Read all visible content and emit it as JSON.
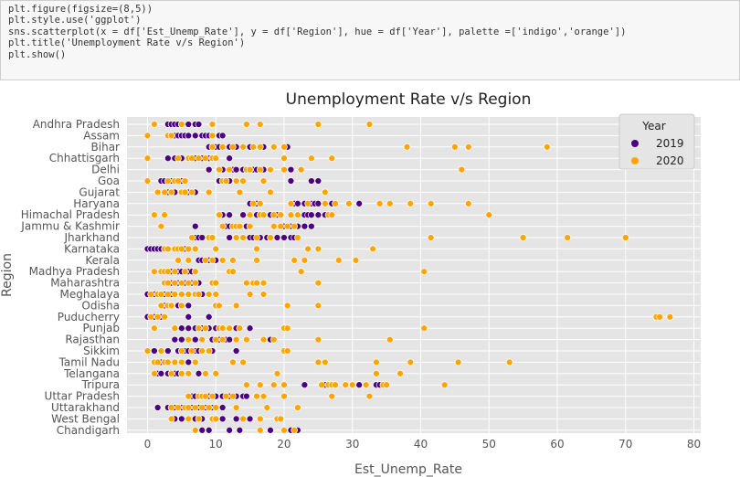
{
  "code": {
    "lines": [
      "plt.figure(figsize=(8,5))",
      "plt.style.use('ggplot')",
      "sns.scatterplot(x = df['Est_Unemp_Rate'], y = df['Region'], hue = df['Year'], palette =['indigo','orange'])",
      "plt.title('Unemployment Rate v/s Region')",
      "plt.show()"
    ]
  },
  "chart_data": {
    "type": "scatter",
    "title": "Unemployment Rate v/s Region",
    "xlabel": "Est_Unemp_Rate",
    "ylabel": "Region",
    "xlim": [
      -3,
      81
    ],
    "xticks": [
      0,
      10,
      20,
      30,
      40,
      50,
      60,
      70,
      80
    ],
    "grid": true,
    "legend": {
      "title": "Year",
      "placement": "top-right"
    },
    "categories": [
      "Andhra Pradesh",
      "Assam",
      "Bihar",
      "Chhattisgarh",
      "Delhi",
      "Goa",
      "Gujarat",
      "Haryana",
      "Himachal Pradesh",
      "Jammu & Kashmir",
      "Jharkhand",
      "Karnataka",
      "Kerala",
      "Madhya Pradesh",
      "Maharashtra",
      "Meghalaya",
      "Odisha",
      "Puducherry",
      "Punjab",
      "Rajasthan",
      "Sikkim",
      "Tamil Nadu",
      "Telangana",
      "Tripura",
      "Uttar Pradesh",
      "Uttarakhand",
      "West Bengal",
      "Chandigarh"
    ],
    "series": [
      {
        "name": "2019",
        "color": "#4b0082",
        "points": [
          [
            "Andhra Pradesh",
            [
              3,
              3.5,
              4,
              4.5,
              5,
              6,
              7,
              7.5
            ]
          ],
          [
            "Assam",
            [
              4,
              4.5,
              5,
              5.5,
              6,
              7,
              8,
              8.5,
              9,
              10.5,
              11
            ]
          ],
          [
            "Bihar",
            [
              9,
              10,
              10.5,
              12,
              13,
              15,
              17,
              20,
              20.5
            ]
          ],
          [
            "Chhattisgarh",
            [
              3,
              4,
              5,
              6,
              7,
              8,
              9,
              9.5,
              12
            ]
          ],
          [
            "Delhi",
            [
              9,
              11,
              12.5,
              13,
              14,
              15.5,
              16,
              17,
              21
            ]
          ],
          [
            "Goa",
            [
              2,
              2.5,
              3,
              3.5,
              4,
              5,
              10.5,
              12,
              21,
              24,
              25
            ]
          ],
          [
            "Gujarat",
            [
              3,
              4,
              5,
              6,
              7
            ]
          ],
          [
            "Haryana",
            [
              15,
              16,
              21,
              21.5,
              22,
              23,
              24,
              24.5,
              25,
              27,
              29.5,
              31
            ]
          ],
          [
            "Himachal Pradesh",
            [
              11,
              12,
              14,
              16,
              17,
              18,
              19,
              22,
              23,
              23.5,
              24,
              25,
              26
            ]
          ],
          [
            "Jammu & Kashmir",
            [
              7,
              11.5,
              12,
              12.5,
              13.5,
              14.5,
              20,
              21,
              22,
              23,
              24
            ]
          ],
          [
            "Jharkhand",
            [
              7,
              7.5,
              8,
              9.5,
              12,
              15,
              15.5,
              16.5,
              17.5,
              19,
              20,
              21,
              21.5
            ]
          ],
          [
            "Karnataka",
            [
              0,
              0.5,
              1,
              1.5,
              2,
              3,
              5,
              5.5,
              6
            ]
          ],
          [
            "Kerala",
            [
              7.5,
              8,
              9,
              10
            ]
          ],
          [
            "Madhya Pradesh",
            [
              3.5,
              4,
              4.5,
              5,
              6,
              6.5,
              7
            ]
          ],
          [
            "Maharashtra",
            [
              3,
              3.5,
              4,
              4.5,
              5,
              5.5,
              6.5,
              7.5
            ]
          ],
          [
            "Meghalaya",
            [
              0,
              1,
              2,
              2.5,
              3.5,
              5,
              6,
              8,
              9
            ]
          ],
          [
            "Odisha",
            [
              2,
              2.5,
              3,
              3.5,
              4.5,
              6
            ]
          ],
          [
            "Puducherry",
            [
              0,
              0.5,
              1,
              2,
              6,
              9
            ]
          ],
          [
            "Punjab",
            [
              5,
              6,
              7,
              8,
              9,
              10,
              11,
              13,
              15
            ]
          ],
          [
            "Rajasthan",
            [
              4,
              5,
              7,
              8,
              9.5,
              10.5,
              11.5,
              12,
              13,
              18
            ]
          ],
          [
            "Sikkim",
            [
              1,
              3,
              4.5,
              5.5,
              6,
              7,
              7.5,
              9.5,
              13
            ]
          ],
          [
            "Tamil Nadu",
            [
              1,
              1.5,
              2,
              2.5,
              3,
              6
            ]
          ],
          [
            "Telangana",
            [
              1.5,
              2,
              3,
              4,
              4.5,
              5,
              6,
              7.5
            ]
          ],
          [
            "Tripura",
            [
              23,
              26,
              27,
              29,
              30,
              31,
              33.5,
              34
            ]
          ],
          [
            "Uttar Pradesh",
            [
              6.5,
              7,
              9,
              10,
              11,
              12,
              13,
              14,
              14.5
            ]
          ],
          [
            "Uttarakhand",
            [
              1.5,
              3,
              4,
              5,
              6.5,
              7.5,
              8.5,
              9.5,
              11
            ]
          ],
          [
            "West Bengal",
            [
              4,
              5,
              7,
              8,
              11,
              13,
              15
            ]
          ],
          [
            "Chandigarh",
            [
              8,
              9,
              12,
              13.5,
              18,
              21,
              22
            ]
          ]
        ]
      },
      {
        "name": "2020",
        "color": "#ffa500",
        "points": [
          [
            "Andhra Pradesh",
            [
              1,
              5,
              9.5,
              14.5,
              16.5,
              25,
              32.5
            ]
          ],
          [
            "Assam",
            [
              0,
              3,
              3.5,
              9.5
            ]
          ],
          [
            "Bihar",
            [
              9.5,
              11,
              12.5,
              14,
              15.5,
              16.5,
              18.5,
              20,
              38,
              45,
              47,
              58.5
            ]
          ],
          [
            "Chhattisgarh",
            [
              0,
              4.5,
              6,
              6.5,
              7.5,
              8.5,
              9.5,
              10,
              20,
              24,
              27
            ]
          ],
          [
            "Delhi",
            [
              10.5,
              12,
              14.5,
              15,
              16.5,
              18,
              20,
              22.5,
              46
            ]
          ],
          [
            "Goa",
            [
              0,
              3,
              4,
              4.5,
              5.5,
              11,
              11.5,
              13,
              14,
              17
            ]
          ],
          [
            "Gujarat",
            [
              1.5,
              2.5,
              3.5,
              5,
              5.5,
              6.5,
              9,
              13.5,
              18,
              26
            ]
          ],
          [
            "Haryana",
            [
              15.5,
              16.5,
              21,
              23.5,
              26,
              27.5,
              29.5,
              34,
              35.5,
              38.5,
              41.5,
              47
            ]
          ],
          [
            "Himachal Pradesh",
            [
              1,
              2.5,
              10.5,
              15,
              16.5,
              17,
              18.5,
              19.5,
              21,
              22,
              26.5,
              27,
              50
            ]
          ],
          [
            "Jammu & Kashmir",
            [
              2,
              11,
              12.5,
              13,
              13.5,
              15,
              18.5,
              19.5,
              20.5,
              21.5
            ]
          ],
          [
            "Jharkhand",
            [
              6.5,
              9,
              9.5,
              13,
              14,
              16,
              18,
              22,
              41.5,
              55,
              61.5,
              70
            ]
          ],
          [
            "Karnataka",
            [
              2.5,
              3,
              4,
              4.5,
              5,
              6,
              7,
              10,
              16,
              23.5,
              25,
              33
            ]
          ],
          [
            "Kerala",
            [
              4.5,
              6,
              8.5,
              9.5,
              11,
              12.5,
              16,
              21.5,
              23,
              28,
              30.5
            ]
          ],
          [
            "Madhya Pradesh",
            [
              1,
              2,
              2.5,
              3,
              4,
              5.5,
              7,
              12,
              12.5,
              22.5,
              40.5
            ]
          ],
          [
            "Maharashtra",
            [
              2.5,
              3,
              4,
              5,
              6,
              7,
              9.5,
              10,
              14.5,
              15.5,
              16,
              17,
              25
            ]
          ],
          [
            "Meghalaya",
            [
              0.5,
              1.5,
              2,
              3,
              4,
              5,
              6,
              7,
              7.5,
              9,
              10,
              15,
              17
            ]
          ],
          [
            "Odisha",
            [
              2,
              3,
              3.5,
              5,
              10,
              10.5,
              13,
              20.5,
              25
            ]
          ],
          [
            "Puducherry",
            [
              0.5,
              1.5,
              2.5,
              74.5,
              75,
              76.5
            ]
          ],
          [
            "Punjab",
            [
              1,
              4,
              7.5,
              8.5,
              10.5,
              11,
              12,
              13.5,
              20,
              20.5,
              40.5
            ]
          ],
          [
            "Rajasthan",
            [
              6,
              8,
              10,
              11,
              13,
              14.5,
              17,
              18.5,
              25,
              35.5
            ]
          ],
          [
            "Sikkim",
            [
              0,
              2,
              5,
              6.5,
              8,
              9,
              20,
              20.5
            ]
          ],
          [
            "Tamil Nadu",
            [
              1,
              1.5,
              2.5,
              3,
              4,
              5,
              7,
              12.5,
              14,
              25,
              26,
              33.5,
              38.5,
              45.5,
              53
            ]
          ],
          [
            "Telangana",
            [
              1,
              3.5,
              5,
              6,
              8.5,
              10,
              19,
              33.5,
              37
            ]
          ],
          [
            "Tripura",
            [
              14.5,
              16.5,
              18.5,
              20,
              25.5,
              26.5,
              27,
              27.5,
              29,
              30,
              32,
              34.5,
              35,
              43.5
            ]
          ],
          [
            "Uttar Pradesh",
            [
              6,
              7.5,
              8,
              8.5,
              9.5,
              11.5,
              12.5,
              16,
              17,
              20,
              27,
              32.5
            ]
          ],
          [
            "Uttarakhand",
            [
              3.5,
              4.5,
              5.5,
              6,
              7,
              8,
              9,
              10,
              13,
              17.5,
              22
            ]
          ],
          [
            "West Bengal",
            [
              3.5,
              6,
              7.5,
              9.5,
              10,
              14,
              16.5,
              19,
              19.5
            ]
          ],
          [
            "Chandigarh",
            [
              7,
              16.5,
              20,
              21.5
            ]
          ]
        ]
      }
    ]
  }
}
